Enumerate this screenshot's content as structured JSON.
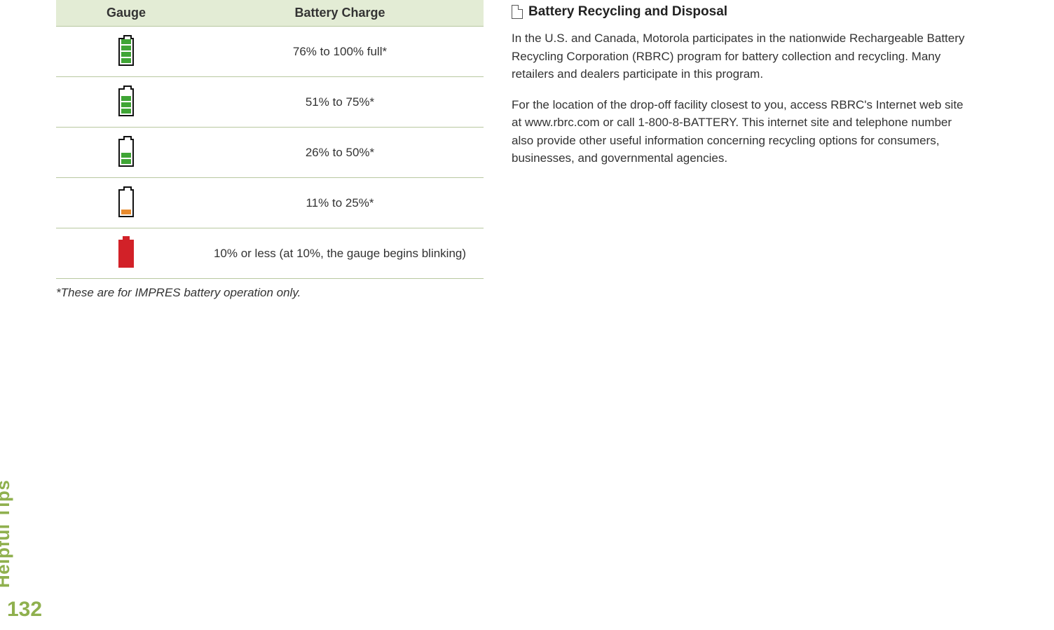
{
  "table": {
    "headers": {
      "gauge": "Gauge",
      "charge": "Battery Charge"
    },
    "rows": [
      {
        "icon": "bat-4",
        "label": "76% to 100% full*"
      },
      {
        "icon": "bat-3",
        "label": "51% to 75%*"
      },
      {
        "icon": "bat-2",
        "label": "26% to 50%*"
      },
      {
        "icon": "bat-1-low",
        "label": "11% to 25%*"
      },
      {
        "icon": "bat-crit",
        "label": "10% or less (at 10%, the gauge begins blinking)"
      }
    ],
    "footnote": "*These are for IMPRES battery operation only."
  },
  "section": {
    "title": "Battery Recycling and Disposal",
    "p1": "In the U.S. and Canada, Motorola participates in the nationwide Rechargeable Battery Recycling Corporation (RBRC) program for battery collection and recycling. Many retailers and dealers participate in this program.",
    "p2": "For the location of the drop-off facility closest to you, access RBRC's Internet web site at www.rbrc.com or call 1-800-8-BATTERY. This internet site and telephone number also provide other useful information concerning recycling options for consumers, businesses, and governmental agencies."
  },
  "side_tab": "Helpful Tips",
  "page_number": "132",
  "colors": {
    "header_bg": "#e3ecd5",
    "border": "#b8c8a0",
    "accent": "#8fb04e",
    "battery_green": "#3fa535",
    "battery_orange": "#e88b2e",
    "battery_red": "#d22128"
  }
}
